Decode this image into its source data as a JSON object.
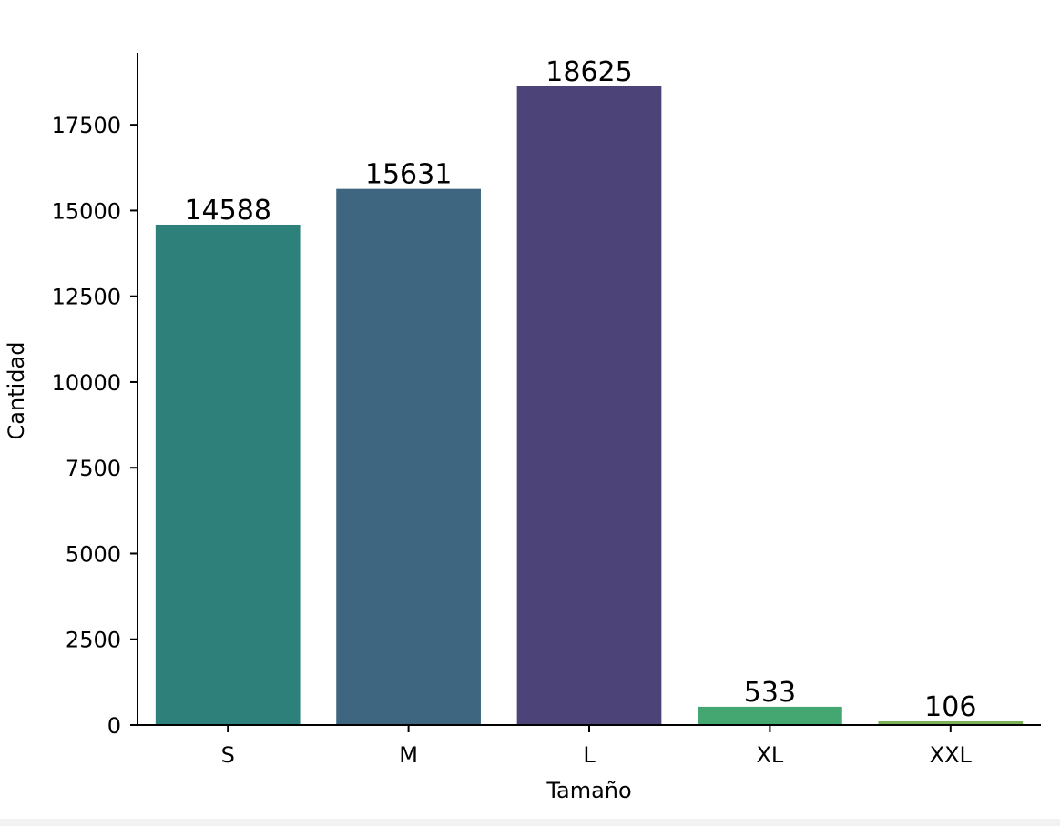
{
  "chart_data": {
    "type": "bar",
    "categories": [
      "S",
      "M",
      "L",
      "XL",
      "XXL"
    ],
    "values": [
      14588,
      15631,
      18625,
      533,
      106
    ],
    "data_labels": [
      "14588",
      "15631",
      "18625",
      "533",
      "106"
    ],
    "colors": [
      "#2e817b",
      "#3f6680",
      "#4c4478",
      "#44a772",
      "#7ab355"
    ],
    "xlabel": "Tamaño",
    "ylabel": "Cantidad",
    "ylim": [
      0,
      19600
    ],
    "yticks": [
      0,
      2500,
      5000,
      7500,
      10000,
      12500,
      15000,
      17500
    ],
    "grid": false,
    "legend": "none"
  }
}
